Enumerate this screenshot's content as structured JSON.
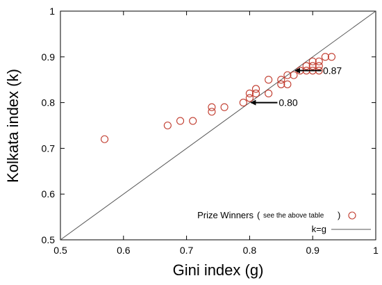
{
  "chart_data": {
    "type": "scatter",
    "xlabel": "Gini index (g)",
    "ylabel": "Kolkata index (k)",
    "xlim": [
      0.5,
      1
    ],
    "ylim": [
      0.5,
      1
    ],
    "x_ticks": [
      "0.5",
      "0.6",
      "0.7",
      "0.8",
      "0.9",
      "1"
    ],
    "y_ticks": [
      "0.5",
      "0.6",
      "0.7",
      "0.8",
      "0.9",
      "1"
    ],
    "grid": false,
    "legend_position": "bottom-right",
    "series": [
      {
        "name": "Prize Winners",
        "name_note": "see the above table",
        "color": "#c0392b",
        "marker": "open-circle",
        "points": [
          {
            "x": 0.57,
            "y": 0.72
          },
          {
            "x": 0.67,
            "y": 0.75
          },
          {
            "x": 0.69,
            "y": 0.76
          },
          {
            "x": 0.71,
            "y": 0.76
          },
          {
            "x": 0.74,
            "y": 0.78
          },
          {
            "x": 0.74,
            "y": 0.79
          },
          {
            "x": 0.76,
            "y": 0.79
          },
          {
            "x": 0.79,
            "y": 0.8
          },
          {
            "x": 0.8,
            "y": 0.81
          },
          {
            "x": 0.8,
            "y": 0.82
          },
          {
            "x": 0.81,
            "y": 0.82
          },
          {
            "x": 0.81,
            "y": 0.83
          },
          {
            "x": 0.83,
            "y": 0.82
          },
          {
            "x": 0.83,
            "y": 0.85
          },
          {
            "x": 0.85,
            "y": 0.84
          },
          {
            "x": 0.85,
            "y": 0.85
          },
          {
            "x": 0.86,
            "y": 0.84
          },
          {
            "x": 0.86,
            "y": 0.86
          },
          {
            "x": 0.87,
            "y": 0.86
          },
          {
            "x": 0.88,
            "y": 0.87
          },
          {
            "x": 0.89,
            "y": 0.87
          },
          {
            "x": 0.89,
            "y": 0.88
          },
          {
            "x": 0.9,
            "y": 0.87
          },
          {
            "x": 0.9,
            "y": 0.88
          },
          {
            "x": 0.9,
            "y": 0.89
          },
          {
            "x": 0.91,
            "y": 0.87
          },
          {
            "x": 0.91,
            "y": 0.88
          },
          {
            "x": 0.91,
            "y": 0.89
          },
          {
            "x": 0.92,
            "y": 0.9
          },
          {
            "x": 0.93,
            "y": 0.9
          }
        ]
      },
      {
        "name": "k=g",
        "color": "#555555",
        "marker": "line",
        "points": [
          {
            "x": 0.5,
            "y": 0.5
          },
          {
            "x": 1,
            "y": 1
          }
        ]
      }
    ],
    "annotations": [
      {
        "text": "0.87",
        "x": 0.87,
        "y": 0.87
      },
      {
        "text": "0.80",
        "x": 0.8,
        "y": 0.8
      }
    ]
  }
}
